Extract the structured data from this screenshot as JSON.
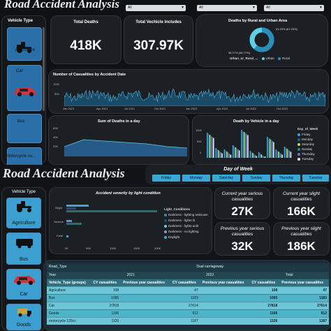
{
  "top": {
    "title": "Road Accident Analysis",
    "filters": [
      {
        "label": "Weather Condition",
        "value": "All"
      },
      {
        "label": "Road Type",
        "value": "All"
      },
      {
        "label": "Light Condition",
        "value": "All"
      }
    ],
    "vehicle_type_header": "Vehicle Type",
    "vehicle_types": [
      "Agriculture",
      "Car",
      "Bus",
      "Motorcycle ov..."
    ],
    "kpis": [
      {
        "title": "Total Deaths",
        "value": "418K"
      },
      {
        "title": "Total Vechicle includes",
        "value": "307.97K"
      }
    ],
    "donut": {
      "title": "Deaths by Rural and Urban Area",
      "urban_pct": "38.77% (38.77%)",
      "rural_pct": "61.23% (61.23%)",
      "legend_title": "Urban_or_Rural_...",
      "legend": [
        "Urban",
        "Rural"
      ],
      "colors": {
        "urban": "#5fd0e8",
        "rural": "#2a8fb8"
      }
    },
    "casualties_chart": {
      "title": "Number of Casualities by Accident Date",
      "y_ticks": [
        "500",
        "1000"
      ],
      "x_ticks": [
        "Jan 2021",
        "Apr 2021",
        "Jul 2021",
        "Oct 2021",
        "Jan 2022",
        "Apr 2022",
        "Jul 2022",
        "Oct 2022"
      ]
    },
    "deaths_day_chart": {
      "title": "Sum of Deaths in a day",
      "y_ticks": [
        "60K",
        "40K",
        "20K",
        "0K"
      ],
      "x_ticks": [
        "Sunday",
        "Tuesday",
        "Thursday",
        "Saturday"
      ]
    },
    "vehicle_day_chart": {
      "title": "Death by Vehicle in a day",
      "y_ticks": [
        "1000",
        "500",
        "0"
      ],
      "legend_title": "Day_of_Week",
      "legend": [
        "Friday",
        "Monday",
        "Saturday",
        "Sunday",
        "Thursday",
        "Tuesday"
      ],
      "legend_colors": [
        "#3ba7d6",
        "#1d5f9e",
        "#c8d85a",
        "#2a8a8a",
        "#7a6fd0",
        "#e8e8e8"
      ]
    }
  },
  "bottom": {
    "title": "Road Accident Analysis",
    "day_filter_title": "Day of Week",
    "days": [
      "Friday",
      "Monday",
      "Saturday",
      "Sunday",
      "Thursday",
      "Tuesday"
    ],
    "vehicle_type_header": "Vehicle Type",
    "vehicle_types": [
      "Agriculture",
      "Bus",
      "Car",
      "Goods"
    ],
    "severity_chart": {
      "title": "Accident severity by light condition",
      "categories": [
        "Slight",
        "Serious",
        "Fatal"
      ],
      "x_ticks": [
        "0K",
        "50K",
        "100K",
        "150K",
        "200K"
      ],
      "legend_title": "Light_Conditions",
      "legend": [
        "Darkness - lighting unknown",
        "Darkness - lights lit",
        "Darkness - lights unlit",
        "Darkness - no lighting",
        "Daylight"
      ],
      "legend_colors": [
        "#2a8fb8",
        "#1d4f7e",
        "#5fd0e8",
        "#7da0b8",
        "#3ba7d6"
      ]
    },
    "kpis": [
      {
        "title": "Current year serious casualities",
        "value": "27K"
      },
      {
        "title": "Current year slight casualities",
        "value": "166K"
      },
      {
        "title": "Previous year serious casualities",
        "value": "32K"
      },
      {
        "title": "Previous year slight casualities",
        "value": "186K"
      }
    ],
    "matrix": {
      "road_type_label": "Road_Type",
      "road_type_value": "Dual carriageway",
      "year_label": "Year",
      "year_2021": "2021",
      "year_2022": "2022",
      "total_label": "Total",
      "col_headers": [
        "Vehicle_Type (groups)",
        "CY casualities",
        "Previous year casualities",
        "CY casualities",
        "Previous year casualities",
        "CY casualities",
        "Previous year casualities"
      ],
      "rows": [
        [
          "Agriculture",
          "108",
          "",
          "47",
          "",
          "108",
          "47"
        ],
        [
          "Bus",
          "1065",
          "",
          "1183",
          "",
          "1065",
          "1183"
        ],
        [
          "Car",
          "27818",
          "",
          "27614",
          "",
          "27818",
          "27614"
        ],
        [
          "Goods",
          "1106",
          "",
          "912",
          "",
          "1106",
          "912"
        ],
        [
          "motorcycle 125cc",
          "1126",
          "",
          "1187",
          "",
          "1126",
          "1187"
        ]
      ]
    }
  }
}
